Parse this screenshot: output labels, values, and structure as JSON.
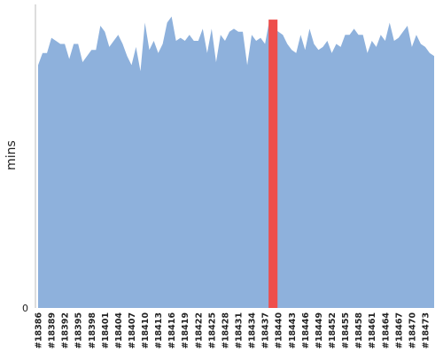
{
  "chart_data": {
    "type": "area",
    "ylabel": "mins",
    "categories": [
      "#18386",
      null,
      null,
      "#18389",
      null,
      null,
      "#18392",
      null,
      null,
      "#18395",
      null,
      null,
      "#18398",
      null,
      null,
      "#18401",
      null,
      null,
      "#18404",
      null,
      null,
      "#18407",
      null,
      null,
      "#18410",
      null,
      null,
      "#18413",
      null,
      null,
      "#18416",
      null,
      null,
      "#18419",
      null,
      null,
      "#18422",
      null,
      null,
      "#18425",
      null,
      null,
      "#18428",
      null,
      null,
      "#18431",
      null,
      null,
      "#18434",
      null,
      null,
      "#18437",
      null,
      null,
      "#18440",
      null,
      null,
      "#18443",
      null,
      null,
      "#18446",
      null,
      null,
      "#18449",
      null,
      null,
      "#18452",
      null,
      null,
      "#18455",
      null,
      null,
      "#18458",
      null,
      null,
      "#18461",
      null,
      null,
      "#18464",
      null,
      null,
      "#18467",
      null,
      null,
      "#18470",
      null,
      null,
      "#18473",
      null,
      null
    ],
    "values": [
      80,
      84,
      84,
      89,
      88,
      87,
      87,
      82,
      87,
      87,
      81,
      83,
      85,
      85,
      93,
      91,
      86,
      88,
      90,
      87,
      83,
      80,
      86,
      78,
      94,
      85,
      88,
      84,
      87,
      94,
      96,
      88,
      89,
      88,
      90,
      88,
      88,
      92,
      84,
      92,
      81,
      90,
      88,
      91,
      92,
      91,
      91,
      80,
      90,
      88,
      89,
      87,
      95,
      92,
      91,
      90,
      87,
      85,
      84,
      90,
      85,
      92,
      87,
      85,
      86,
      88,
      84,
      87,
      86,
      90,
      90,
      92,
      90,
      90,
      84,
      88,
      86,
      90,
      88,
      94,
      88,
      89,
      91,
      93,
      86,
      90,
      87,
      86,
      84,
      83
    ],
    "color": "#8eb1dc",
    "highlight": {
      "index": 52,
      "color": "#ee4e4b"
    },
    "ylim": [
      0,
      100
    ],
    "yticks": [
      0
    ]
  }
}
